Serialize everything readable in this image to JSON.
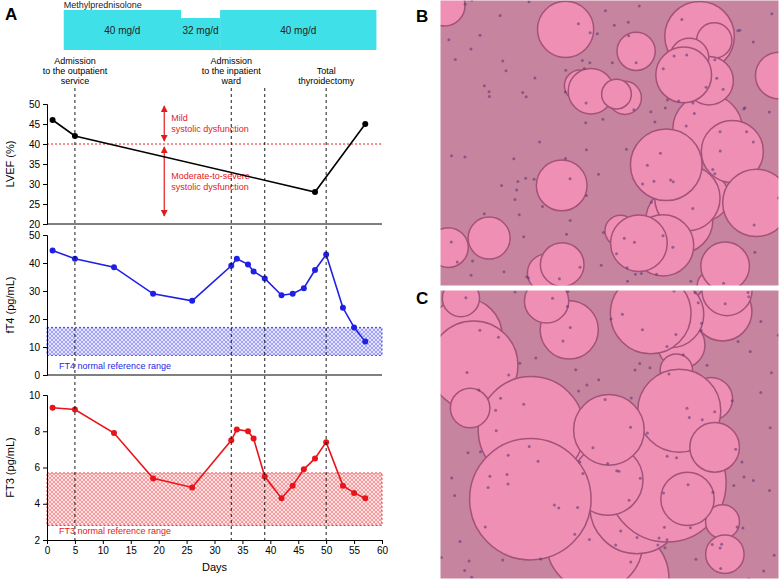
{
  "panel_labels": [
    "A",
    "B",
    "C"
  ],
  "chart_data": [
    {
      "type": "timeline",
      "title": "Methylprednisolone",
      "color": "#40e0e8",
      "xlim": [
        0,
        60
      ],
      "segments": [
        {
          "start": 3,
          "end": 24,
          "value": 40,
          "label": "40 mg/d"
        },
        {
          "start": 24,
          "end": 31,
          "value": 32,
          "label": "32 mg/d"
        },
        {
          "start": 31,
          "end": 59,
          "value": 40,
          "label": "40 mg/d"
        }
      ]
    },
    {
      "type": "line",
      "ylabel": "LVEF (%)",
      "xlim": [
        0,
        60
      ],
      "ylim": [
        20,
        50
      ],
      "yticks": [
        20,
        25,
        30,
        35,
        40,
        45,
        50
      ],
      "tick_labels": "y",
      "grid": false,
      "x": [
        1,
        5,
        48,
        57
      ],
      "series": [
        {
          "color": "#000000",
          "marker": "circle",
          "values": [
            46,
            42,
            28,
            45
          ]
        }
      ],
      "threshold": 40,
      "annotations": [
        {
          "text": [
            "Mild",
            "systolic dysfunction"
          ],
          "position": "above"
        },
        {
          "text": [
            "Moderate-to-severe",
            "systolic dysfunction"
          ],
          "position": "below"
        }
      ],
      "events": [
        {
          "x": 5,
          "label": [
            "Admission",
            "to the outpatient",
            "service"
          ]
        },
        {
          "x": 33,
          "label": [
            "Admission",
            "to the inpatient",
            "ward"
          ]
        },
        {
          "x": 39
        },
        {
          "x": 50,
          "label": [
            "Total",
            "thyroidectomy"
          ]
        }
      ]
    },
    {
      "type": "line",
      "ylabel": "fT4 (pg/mL)",
      "xlim": [
        0,
        60
      ],
      "ylim": [
        0,
        50
      ],
      "yticks": [
        0,
        10,
        20,
        30,
        40,
        50
      ],
      "tick_labels": "y",
      "grid": false,
      "x": [
        1,
        5,
        12,
        19,
        26,
        33,
        34,
        36,
        37,
        39,
        42,
        44,
        46,
        48,
        50,
        53,
        55,
        57
      ],
      "series": [
        {
          "color": "#1f1fe6",
          "marker": "circle",
          "values": [
            44.5,
            41.5,
            38.5,
            29,
            26.5,
            39,
            41.5,
            39.5,
            37,
            34.5,
            28.5,
            29,
            31,
            37.5,
            43,
            24,
            17,
            12
          ]
        }
      ],
      "normal_range": [
        7,
        17
      ],
      "normal_range_label": "FT4 normal reference range"
    },
    {
      "type": "line",
      "ylabel": "FT3 (pg/mL)",
      "xlabel": "Days",
      "xlim": [
        0,
        60
      ],
      "ylim": [
        2,
        10
      ],
      "xticks": [
        0,
        5,
        10,
        15,
        20,
        25,
        30,
        35,
        40,
        45,
        50,
        55,
        60
      ],
      "yticks": [
        2,
        4,
        6,
        8,
        10
      ],
      "grid": false,
      "x": [
        1,
        5,
        12,
        19,
        26,
        33,
        34,
        36,
        37,
        39,
        42,
        44,
        46,
        48,
        50,
        53,
        55,
        57
      ],
      "series": [
        {
          "color": "#e8141b",
          "marker": "circle",
          "values": [
            9.3,
            9.2,
            7.9,
            5.4,
            4.9,
            7.5,
            8.1,
            8.0,
            7.6,
            5.5,
            4.3,
            5.0,
            5.9,
            6.5,
            7.4,
            5.0,
            4.6,
            4.3
          ]
        }
      ],
      "normal_range": [
        2.8,
        5.7
      ],
      "normal_range_label": "FT3 normal reference range"
    }
  ]
}
